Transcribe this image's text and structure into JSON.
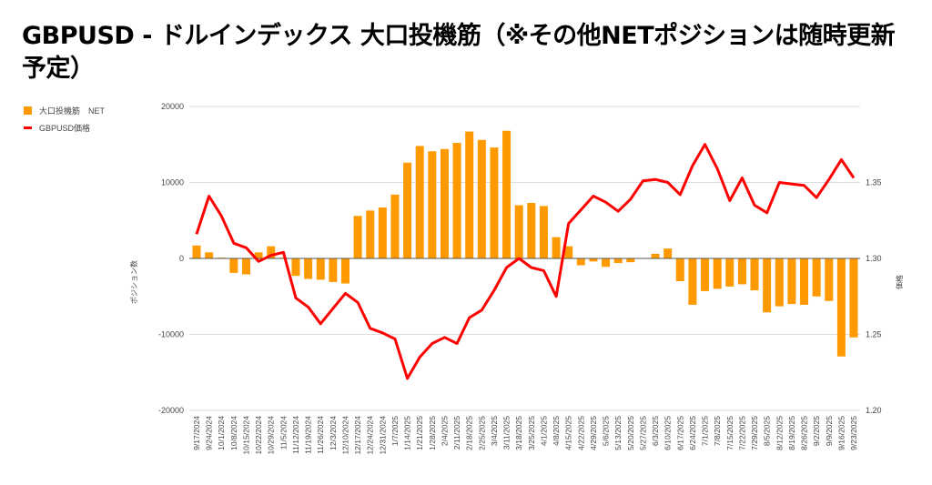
{
  "title": "GBPUSD - ドルインデックス 大口投機筋（※その他NETポジションは随時更新予定）",
  "colors": {
    "bar": "#ff9900",
    "line": "#ff0000",
    "grid": "#dddddd",
    "zero": "#555555"
  },
  "chart_data": {
    "type": "bar+line",
    "legend_position": "top-left",
    "grid": true,
    "y_left": {
      "label": "ポジション数",
      "ylim": [
        -20000,
        20000
      ],
      "ticks": [
        "20000",
        "10000",
        "0",
        "-10000",
        "-20000"
      ],
      "tick_values": [
        20000,
        10000,
        0,
        -10000,
        -20000
      ]
    },
    "y_right": {
      "label": "価格",
      "ylim": [
        1.2,
        1.4
      ],
      "ticks": [
        "1.35",
        "1.30",
        "1.25",
        "1.20"
      ],
      "tick_values": [
        1.35,
        1.3,
        1.25,
        1.2
      ]
    },
    "categories": [
      "9/17/2024",
      "9/24/2024",
      "10/1/2024",
      "10/8/2024",
      "10/15/2024",
      "10/22/2024",
      "10/29/2024",
      "11/5/2024",
      "11/12/2024",
      "11/19/2024",
      "11/26/2024",
      "12/3/2024",
      "12/10/2024",
      "12/17/2024",
      "12/24/2024",
      "12/31/2024",
      "1/7/2025",
      "1/14/2025",
      "1/21/2025",
      "1/28/2025",
      "2/4/2025",
      "2/11/2025",
      "2/18/2025",
      "2/25/2025",
      "3/4/2025",
      "3/11/2025",
      "3/18/2025",
      "3/25/2025",
      "4/1/2025",
      "4/8/2025",
      "4/15/2025",
      "4/22/2025",
      "4/29/2025",
      "5/6/2025",
      "5/13/2025",
      "5/20/2025",
      "5/27/2025",
      "6/3/2025",
      "6/10/2025",
      "6/17/2025",
      "6/24/2025",
      "7/1/2025",
      "7/8/2025",
      "7/15/2025",
      "7/22/2025",
      "7/29/2025",
      "8/5/2025",
      "8/12/2025",
      "8/19/2025",
      "8/26/2025",
      "9/2/2025",
      "9/9/2025",
      "9/16/2025",
      "9/23/2025"
    ],
    "series": [
      {
        "name": "大口投機筋　NET",
        "type": "bar",
        "axis": "left",
        "values": [
          1700,
          800,
          100,
          -1900,
          -2100,
          800,
          1600,
          100,
          -2300,
          -2700,
          -2800,
          -3100,
          -3300,
          5600,
          6300,
          6700,
          8400,
          12600,
          14800,
          14100,
          14400,
          15200,
          16700,
          15600,
          14600,
          16800,
          7000,
          7300,
          6900,
          2800,
          1600,
          -900,
          -400,
          -1100,
          -600,
          -500,
          50,
          600,
          1300,
          -3000,
          -6100,
          -4300,
          -4000,
          -3700,
          -3400,
          -4200,
          -7100,
          -6300,
          -6000,
          -6100,
          -5000,
          -5600,
          -12900,
          -10400
        ]
      },
      {
        "name": "GBPUSD価格",
        "type": "line",
        "axis": "right",
        "values": [
          1.316,
          1.341,
          1.328,
          1.31,
          1.307,
          1.298,
          1.302,
          1.304,
          1.274,
          1.268,
          1.257,
          1.267,
          1.277,
          1.271,
          1.254,
          1.251,
          1.247,
          1.221,
          1.235,
          1.244,
          1.248,
          1.244,
          1.261,
          1.266,
          1.279,
          1.294,
          1.3,
          1.294,
          1.292,
          1.275,
          1.323,
          1.332,
          1.341,
          1.337,
          1.331,
          1.339,
          1.351,
          1.352,
          1.35,
          1.342,
          1.361,
          1.375,
          1.359,
          1.338,
          1.353,
          1.335,
          1.33,
          1.35,
          1.349,
          1.348,
          1.34,
          1.352,
          1.365,
          1.353
        ]
      }
    ]
  }
}
